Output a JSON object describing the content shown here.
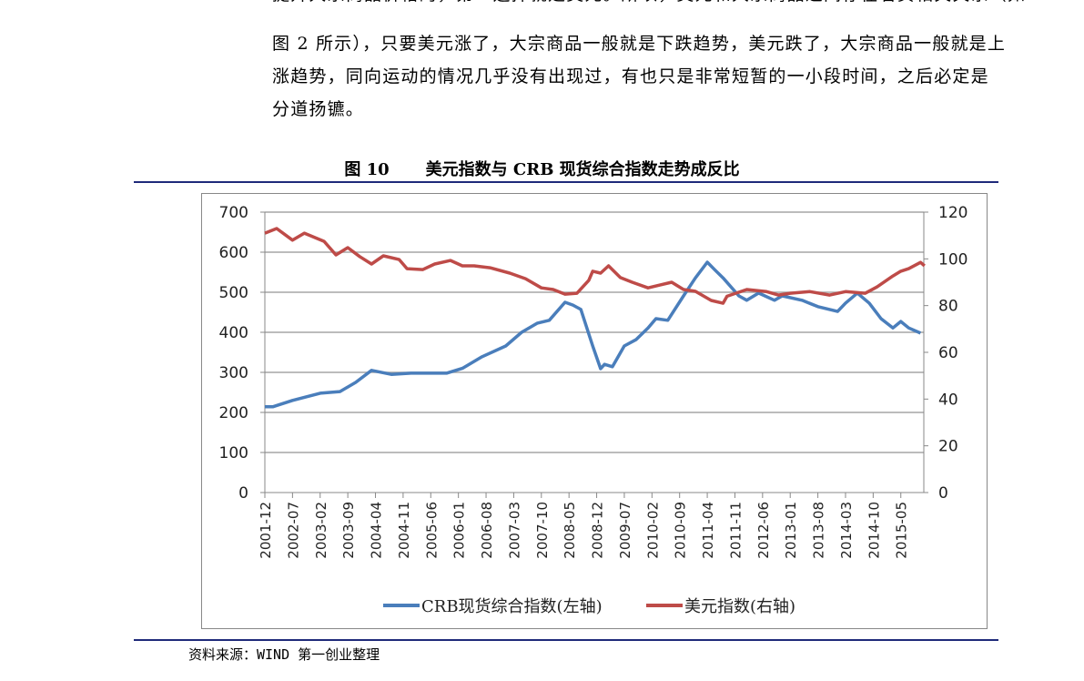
{
  "paragraph": {
    "lines": [
      "提升大宗商品价格的，第一选择就是美元。所以，美元和大宗商品之间存在着负相关关系（如",
      "图 2 所示），只要美元涨了，大宗商品一般就是下跌趋势，美元跌了，大宗商品一般就是上",
      "涨趋势，同向运动的情况几乎没有出现过，有也只是非常短暂的一小段时间，之后必定是",
      "分道扬镳。"
    ]
  },
  "figure": {
    "number": "图 10",
    "title": "美元指数与 CRB 现货综合指数走势成反比"
  },
  "source": "资料来源：WIND  第一创业整理",
  "colors": {
    "crb": "#4a7ebb",
    "usd": "#be4b48",
    "rule": "#1f2a7a",
    "grid": "#a6a6a6"
  },
  "chart_data": {
    "type": "line",
    "x_tick_labels": [
      "2001-12",
      "2002-07",
      "2003-02",
      "2003-09",
      "2004-04",
      "2004-11",
      "2005-06",
      "2006-01",
      "2006-08",
      "2007-03",
      "2007-10",
      "2008-05",
      "2008-12",
      "2009-07",
      "2010-02",
      "2010-09",
      "2011-04",
      "2011-11",
      "2012-06",
      "2013-01",
      "2013-08",
      "2014-03",
      "2014-10",
      "2015-05"
    ],
    "y_left": {
      "min": 0,
      "max": 700,
      "ticks": [
        0,
        100,
        200,
        300,
        400,
        500,
        600,
        700
      ]
    },
    "y_right": {
      "min": 0,
      "max": 120,
      "ticks": [
        0,
        20,
        40,
        60,
        80,
        100,
        120
      ]
    },
    "grid": true,
    "legend_position": "bottom",
    "series": [
      {
        "name": "CRB现货综合指数(左轴)",
        "axis": "left",
        "x": [
          "2001-12",
          "2002-02",
          "2002-07",
          "2003-02",
          "2003-07",
          "2003-11",
          "2004-03",
          "2004-08",
          "2005-01",
          "2005-05",
          "2005-10",
          "2006-02",
          "2006-07",
          "2007-01",
          "2007-05",
          "2007-09",
          "2007-12",
          "2008-04",
          "2008-06",
          "2008-08",
          "2008-11",
          "2009-01",
          "2009-02",
          "2009-04",
          "2009-07",
          "2009-10",
          "2010-01",
          "2010-03",
          "2010-06",
          "2010-10",
          "2011-01",
          "2011-04",
          "2011-06",
          "2011-08",
          "2011-12",
          "2012-02",
          "2012-05",
          "2012-09",
          "2012-11",
          "2013-04",
          "2013-08",
          "2014-01",
          "2014-03",
          "2014-06",
          "2014-09",
          "2014-12",
          "2015-03",
          "2015-05",
          "2015-07",
          "2015-10"
        ],
        "values": [
          214,
          214,
          230,
          248,
          252,
          275,
          305,
          295,
          298,
          298,
          298,
          310,
          339,
          366,
          400,
          423,
          430,
          475,
          468,
          457,
          366,
          309,
          320,
          314,
          366,
          382,
          411,
          434,
          430,
          491,
          536,
          575,
          555,
          536,
          491,
          480,
          498,
          480,
          491,
          480,
          464,
          452,
          473,
          498,
          473,
          434,
          411,
          427,
          411,
          398
        ]
      },
      {
        "name": "美元指数(右轴)",
        "axis": "right",
        "x": [
          "2001-12",
          "2002-03",
          "2002-07",
          "2002-10",
          "2003-03",
          "2003-06",
          "2003-09",
          "2003-12",
          "2004-03",
          "2004-06",
          "2004-10",
          "2004-12",
          "2005-04",
          "2005-07",
          "2005-11",
          "2006-02",
          "2006-05",
          "2006-09",
          "2007-02",
          "2007-06",
          "2007-10",
          "2008-01",
          "2008-04",
          "2008-07",
          "2008-10",
          "2008-11",
          "2009-01",
          "2009-03",
          "2009-06",
          "2009-09",
          "2010-01",
          "2010-04",
          "2010-07",
          "2010-10",
          "2011-01",
          "2011-05",
          "2011-08",
          "2011-09",
          "2012-02",
          "2012-07",
          "2012-10",
          "2013-01",
          "2013-06",
          "2013-11",
          "2014-03",
          "2014-08",
          "2014-11",
          "2015-03",
          "2015-05",
          "2015-07",
          "2015-10",
          "2015-11"
        ],
        "values": [
          111,
          113,
          108,
          111,
          107.5,
          101.7,
          104.8,
          101,
          97.8,
          101.3,
          99.7,
          95.8,
          95.4,
          97.8,
          99.3,
          97,
          97,
          96.2,
          93.9,
          91.5,
          87.6,
          86.9,
          84.9,
          85.3,
          90.8,
          94.7,
          93.9,
          97,
          92,
          90,
          87.6,
          88.8,
          90,
          86.9,
          86.1,
          82.2,
          81,
          84,
          86.9,
          86,
          84.5,
          85.3,
          86,
          84.5,
          86,
          85.3,
          88,
          92.7,
          94.7,
          95.8,
          98.5,
          97
        ]
      }
    ]
  }
}
